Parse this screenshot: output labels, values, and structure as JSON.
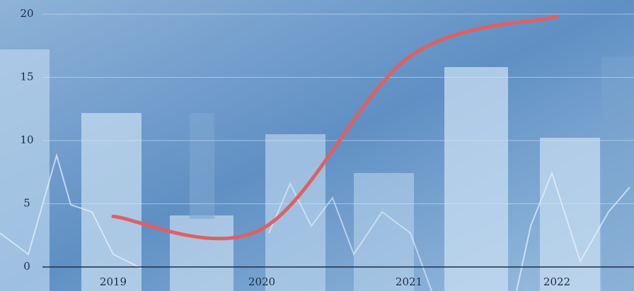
{
  "chart_data": {
    "type": "line",
    "categories": [
      "2019",
      "2020",
      "2021",
      "2022"
    ],
    "series": [
      {
        "values": [
          4,
          3,
          16.6,
          19.8
        ],
        "color": "#e06060"
      }
    ],
    "ylim": [
      0,
      20
    ],
    "yticks": [
      0,
      5,
      10,
      15,
      20
    ],
    "grid": true
  }
}
